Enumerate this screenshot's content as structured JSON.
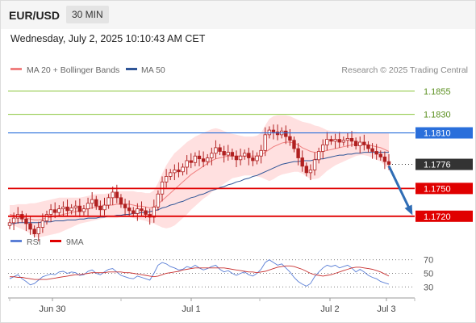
{
  "header": {
    "symbol": "EUR/USD",
    "timeframe": "30 MIN"
  },
  "timestamp": "Wednesday, July 2, 2025 10:10:43 AM CET",
  "legend": {
    "ma20": "MA 20 + Bollinger Bands",
    "ma50": "MA 50",
    "rsi": "RSI",
    "ma9": "9MA"
  },
  "credit": "Research © 2025 Trading Central",
  "colors": {
    "ma20": "#f08080",
    "bands": "#ffd6d6",
    "ma50": "#2f5597",
    "level_green": "#8cc63f",
    "level_blue": "#2a6fdb",
    "level_red": "#e00000",
    "candle": "#b02020",
    "arrow": "#2f6db5",
    "current_tag": "#333333"
  },
  "chart_data": [
    {
      "type": "line",
      "title": "",
      "x_ticks": [
        "Jun 30",
        "Jul 1",
        "Jul 2",
        "Jul 3"
      ],
      "ylim": [
        1.1705,
        1.1868
      ],
      "levels": [
        {
          "value": 1.1855,
          "label": "1.1855",
          "kind": "resistance-green"
        },
        {
          "value": 1.183,
          "label": "1.1830",
          "kind": "resistance-green"
        },
        {
          "value": 1.181,
          "label": "1.1810",
          "kind": "resistance-blue"
        },
        {
          "value": 1.1776,
          "label": "1.1776",
          "kind": "current"
        },
        {
          "value": 1.175,
          "label": "1.1750",
          "kind": "support-red"
        },
        {
          "value": 1.172,
          "label": "1.1720",
          "kind": "support-red"
        }
      ],
      "price": [
        1.1713,
        1.1718,
        1.1722,
        1.1717,
        1.1712,
        1.1706,
        1.1701,
        1.1708,
        1.1715,
        1.1722,
        1.1727,
        1.1724,
        1.1728,
        1.173,
        1.1726,
        1.1729,
        1.1731,
        1.1725,
        1.1728,
        1.1734,
        1.1738,
        1.1731,
        1.1727,
        1.1732,
        1.174,
        1.1746,
        1.174,
        1.1733,
        1.1729,
        1.1726,
        1.1723,
        1.1728,
        1.1726,
        1.1722,
        1.1719,
        1.173,
        1.1744,
        1.1757,
        1.1763,
        1.1767,
        1.177,
        1.1768,
        1.1773,
        1.178,
        1.1778,
        1.1785,
        1.1782,
        1.1779,
        1.1783,
        1.1788,
        1.1794,
        1.179,
        1.1786,
        1.1789,
        1.1785,
        1.1781,
        1.1785,
        1.1788,
        1.1783,
        1.178,
        1.1785,
        1.1791,
        1.1808,
        1.1813,
        1.1811,
        1.1808,
        1.1812,
        1.1806,
        1.1802,
        1.1793,
        1.1783,
        1.1774,
        1.1767,
        1.177,
        1.1781,
        1.179,
        1.1797,
        1.1803,
        1.1801,
        1.1803,
        1.18,
        1.1802,
        1.1804,
        1.1801,
        1.1796,
        1.18,
        1.1797,
        1.1793,
        1.179,
        1.1787,
        1.1784,
        1.1779,
        1.1776
      ],
      "ma20": [
        1.1722,
        1.1721,
        1.172,
        1.1719,
        1.1718,
        1.1717,
        1.1716,
        1.1716,
        1.1717,
        1.1718,
        1.1719,
        1.172,
        1.1721,
        1.1722,
        1.1723,
        1.1724,
        1.1725,
        1.1726,
        1.1727,
        1.1728,
        1.1729,
        1.173,
        1.1731,
        1.1731,
        1.1732,
        1.1732,
        1.1733,
        1.1733,
        1.1733,
        1.1733,
        1.1732,
        1.1731,
        1.1731,
        1.173,
        1.1729,
        1.173,
        1.1733,
        1.1737,
        1.1741,
        1.1745,
        1.1749,
        1.1753,
        1.1757,
        1.1761,
        1.1765,
        1.1768,
        1.1771,
        1.1774,
        1.1777,
        1.178,
        1.1782,
        1.1783,
        1.1784,
        1.1785,
        1.1785,
        1.1785,
        1.1785,
        1.1785,
        1.1785,
        1.1785,
        1.1785,
        1.1786,
        1.1789,
        1.1792,
        1.1795,
        1.1797,
        1.1799,
        1.18,
        1.18,
        1.1799,
        1.1797,
        1.1794,
        1.1792,
        1.179,
        1.1789,
        1.1789,
        1.179,
        1.1791,
        1.1792,
        1.1793,
        1.1794,
        1.1795,
        1.1796,
        1.1797,
        1.1798,
        1.1798,
        1.1798,
        1.1797,
        1.1796,
        1.1795,
        1.1794,
        1.1792,
        1.179
      ],
      "upper_band": [
        1.1732,
        1.1732,
        1.1733,
        1.1733,
        1.1733,
        1.1734,
        1.1734,
        1.1735,
        1.1736,
        1.1737,
        1.1738,
        1.1739,
        1.174,
        1.174,
        1.174,
        1.174,
        1.174,
        1.174,
        1.1741,
        1.1742,
        1.1743,
        1.1744,
        1.1744,
        1.1744,
        1.1745,
        1.1746,
        1.1747,
        1.1747,
        1.1747,
        1.1747,
        1.1747,
        1.1746,
        1.1746,
        1.1745,
        1.1745,
        1.1748,
        1.1756,
        1.1766,
        1.1775,
        1.1782,
        1.1788,
        1.1792,
        1.1796,
        1.18,
        1.1803,
        1.1806,
        1.1808,
        1.181,
        1.1812,
        1.1814,
        1.1815,
        1.1814,
        1.1812,
        1.181,
        1.1809,
        1.1808,
        1.1807,
        1.1806,
        1.1806,
        1.1806,
        1.1807,
        1.181,
        1.1818,
        1.1825,
        1.1828,
        1.1829,
        1.1829,
        1.1829,
        1.1828,
        1.1826,
        1.1824,
        1.1822,
        1.1821,
        1.182,
        1.1818,
        1.1817,
        1.1815,
        1.1813,
        1.1812,
        1.1812,
        1.1811,
        1.1811,
        1.1811,
        1.1811,
        1.1811,
        1.181,
        1.181,
        1.181,
        1.181,
        1.181,
        1.181,
        1.181,
        1.181
      ],
      "lower_band": [
        1.1711,
        1.171,
        1.1708,
        1.1706,
        1.1704,
        1.1701,
        1.1698,
        1.1697,
        1.1698,
        1.1699,
        1.17,
        1.1701,
        1.1702,
        1.1704,
        1.1706,
        1.1708,
        1.171,
        1.1712,
        1.1713,
        1.1714,
        1.1715,
        1.1716,
        1.1717,
        1.1718,
        1.1718,
        1.1718,
        1.1718,
        1.1719,
        1.1719,
        1.1719,
        1.1718,
        1.1717,
        1.1716,
        1.1715,
        1.1713,
        1.1712,
        1.171,
        1.1708,
        1.1707,
        1.1708,
        1.171,
        1.1714,
        1.1718,
        1.1722,
        1.1727,
        1.1731,
        1.1735,
        1.1739,
        1.1742,
        1.1746,
        1.1749,
        1.1752,
        1.1755,
        1.1758,
        1.1761,
        1.1762,
        1.1763,
        1.1764,
        1.1764,
        1.1764,
        1.1763,
        1.1762,
        1.176,
        1.1758,
        1.176,
        1.1763,
        1.1765,
        1.1766,
        1.1767,
        1.1768,
        1.1768,
        1.1766,
        1.1763,
        1.176,
        1.176,
        1.1761,
        1.1765,
        1.1769,
        1.1772,
        1.1775,
        1.1777,
        1.1779,
        1.1781,
        1.1783,
        1.1785,
        1.1786,
        1.1786,
        1.1785,
        1.1783,
        1.1781,
        1.1779,
        1.1775,
        1.1771
      ],
      "ma50": [
        1.1712,
        1.1712,
        1.1713,
        1.1713,
        1.1713,
        1.1713,
        1.1713,
        1.1713,
        1.1714,
        1.1714,
        1.1714,
        1.1715,
        1.1715,
        1.1715,
        1.1716,
        1.1716,
        1.1716,
        1.1717,
        1.1717,
        1.1718,
        1.1718,
        1.1718,
        1.1719,
        1.1719,
        1.172,
        1.172,
        1.1721,
        1.1721,
        1.1722,
        1.1722,
        1.1723,
        1.1723,
        1.1724,
        1.1724,
        1.1725,
        1.1726,
        1.1727,
        1.1729,
        1.173,
        1.1732,
        1.1733,
        1.1735,
        1.1736,
        1.1738,
        1.174,
        1.1741,
        1.1743,
        1.1744,
        1.1746,
        1.1748,
        1.1749,
        1.1751,
        1.1752,
        1.1754,
        1.1755,
        1.1757,
        1.1758,
        1.176,
        1.1761,
        1.1763,
        1.1764,
        1.1766,
        1.1768,
        1.177,
        1.1772,
        1.1774,
        1.1776,
        1.1777,
        1.1778,
        1.1779,
        1.1779,
        1.178,
        1.178,
        1.178,
        1.1781,
        1.1782,
        1.1782,
        1.1783,
        1.1784,
        1.1785,
        1.1786,
        1.1786,
        1.1787,
        1.1787,
        1.1788,
        1.1788,
        1.1789,
        1.1789,
        1.1789,
        1.1789,
        1.1789,
        1.1789,
        1.1789
      ],
      "forecast": {
        "from": 1.1776,
        "to": 1.172
      }
    },
    {
      "type": "line",
      "title": "",
      "y_ticks": [
        70,
        50,
        30
      ],
      "ylim": [
        22,
        78
      ],
      "series": [
        {
          "name": "RSI",
          "values": [
            42,
            45,
            48,
            42,
            38,
            33,
            35,
            40,
            45,
            47,
            49,
            48,
            52,
            53,
            50,
            52,
            51,
            47,
            48,
            53,
            55,
            50,
            48,
            52,
            56,
            57,
            52,
            47,
            45,
            43,
            42,
            46,
            44,
            42,
            40,
            50,
            62,
            66,
            64,
            60,
            58,
            55,
            56,
            60,
            58,
            62,
            58,
            55,
            57,
            60,
            62,
            56,
            52,
            54,
            50,
            47,
            50,
            52,
            48,
            46,
            50,
            56,
            66,
            70,
            66,
            62,
            64,
            58,
            52,
            44,
            38,
            34,
            31,
            35,
            45,
            52,
            58,
            62,
            60,
            62,
            58,
            60,
            62,
            58,
            52,
            56,
            52,
            47,
            44,
            42,
            38,
            36,
            34
          ]
        },
        {
          "name": "9MA",
          "values": [
            45,
            45,
            44,
            44,
            43,
            42,
            41,
            41,
            41,
            41,
            42,
            43,
            44,
            45,
            46,
            47,
            48,
            48,
            49,
            50,
            51,
            51,
            51,
            51,
            52,
            52,
            52,
            52,
            51,
            51,
            50,
            49,
            48,
            47,
            46,
            45,
            46,
            48,
            50,
            51,
            52,
            53,
            55,
            56,
            57,
            58,
            58,
            58,
            58,
            58,
            58,
            58,
            58,
            57,
            56,
            55,
            54,
            53,
            52,
            52,
            51,
            52,
            53,
            55,
            57,
            59,
            60,
            61,
            61,
            60,
            58,
            56,
            53,
            50,
            48,
            47,
            46,
            47,
            48,
            50,
            52,
            54,
            56,
            58,
            59,
            59,
            58,
            57,
            56,
            54,
            52,
            49,
            46
          ]
        }
      ]
    }
  ]
}
